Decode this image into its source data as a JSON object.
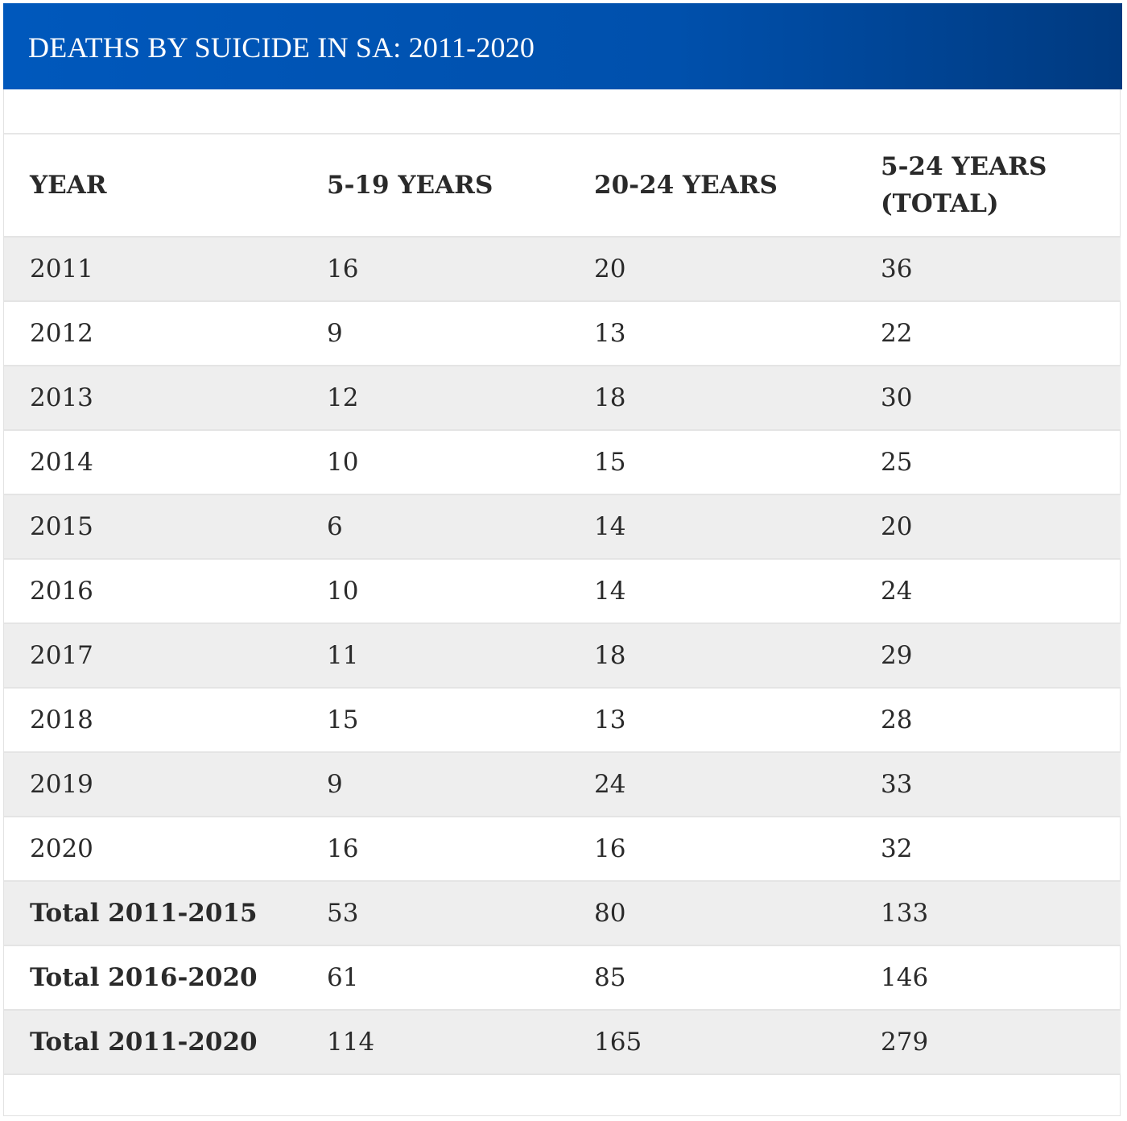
{
  "title": "DEATHS BY SUICIDE IN SA: 2011-2020",
  "columns": [
    "YEAR",
    "5-19 YEARS",
    "20-24 YEARS",
    "5-24 YEARS (TOTAL)"
  ],
  "rows": [
    [
      "2011",
      "16",
      "20",
      "36"
    ],
    [
      "2012",
      "9",
      "13",
      "22"
    ],
    [
      "2013",
      "12",
      "18",
      "30"
    ],
    [
      "2014",
      "10",
      "15",
      "25"
    ],
    [
      "2015",
      "6",
      "14",
      "20"
    ],
    [
      "2016",
      "10",
      "14",
      "24"
    ],
    [
      "2017",
      "11",
      "18",
      "29"
    ],
    [
      "2018",
      "15",
      "13",
      "28"
    ],
    [
      "2019",
      "9",
      "24",
      "33"
    ],
    [
      "2020",
      "16",
      "16",
      "32"
    ],
    [
      "Total 2011-2015",
      "53",
      "80",
      "133"
    ],
    [
      "Total 2016-2020",
      "61",
      "85",
      "146"
    ],
    [
      "Total 2011-2020",
      "114",
      "165",
      "279"
    ]
  ],
  "colors": {
    "banner": "#0058bc",
    "banner_end": "#003a80",
    "stripe": "#eeeeee"
  }
}
